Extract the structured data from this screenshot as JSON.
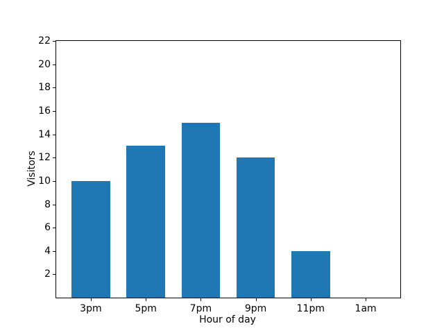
{
  "chart_data": {
    "type": "bar",
    "title": "",
    "categories": [
      "3pm",
      "5pm",
      "7pm",
      "9pm",
      "11pm",
      "1am"
    ],
    "values": [
      10,
      13,
      15,
      12,
      4,
      0
    ],
    "xlabel": "Hour of day",
    "ylabel": "Visitors",
    "ylim": [
      0,
      22
    ],
    "yticks": [
      2,
      4,
      6,
      8,
      10,
      12,
      14,
      16,
      18,
      20,
      22
    ],
    "bar_color": "#1f77b4",
    "axis_color": "#000000",
    "background_color": "#ffffff",
    "grid": false,
    "legend": null,
    "bar_width_fraction": 0.7
  }
}
